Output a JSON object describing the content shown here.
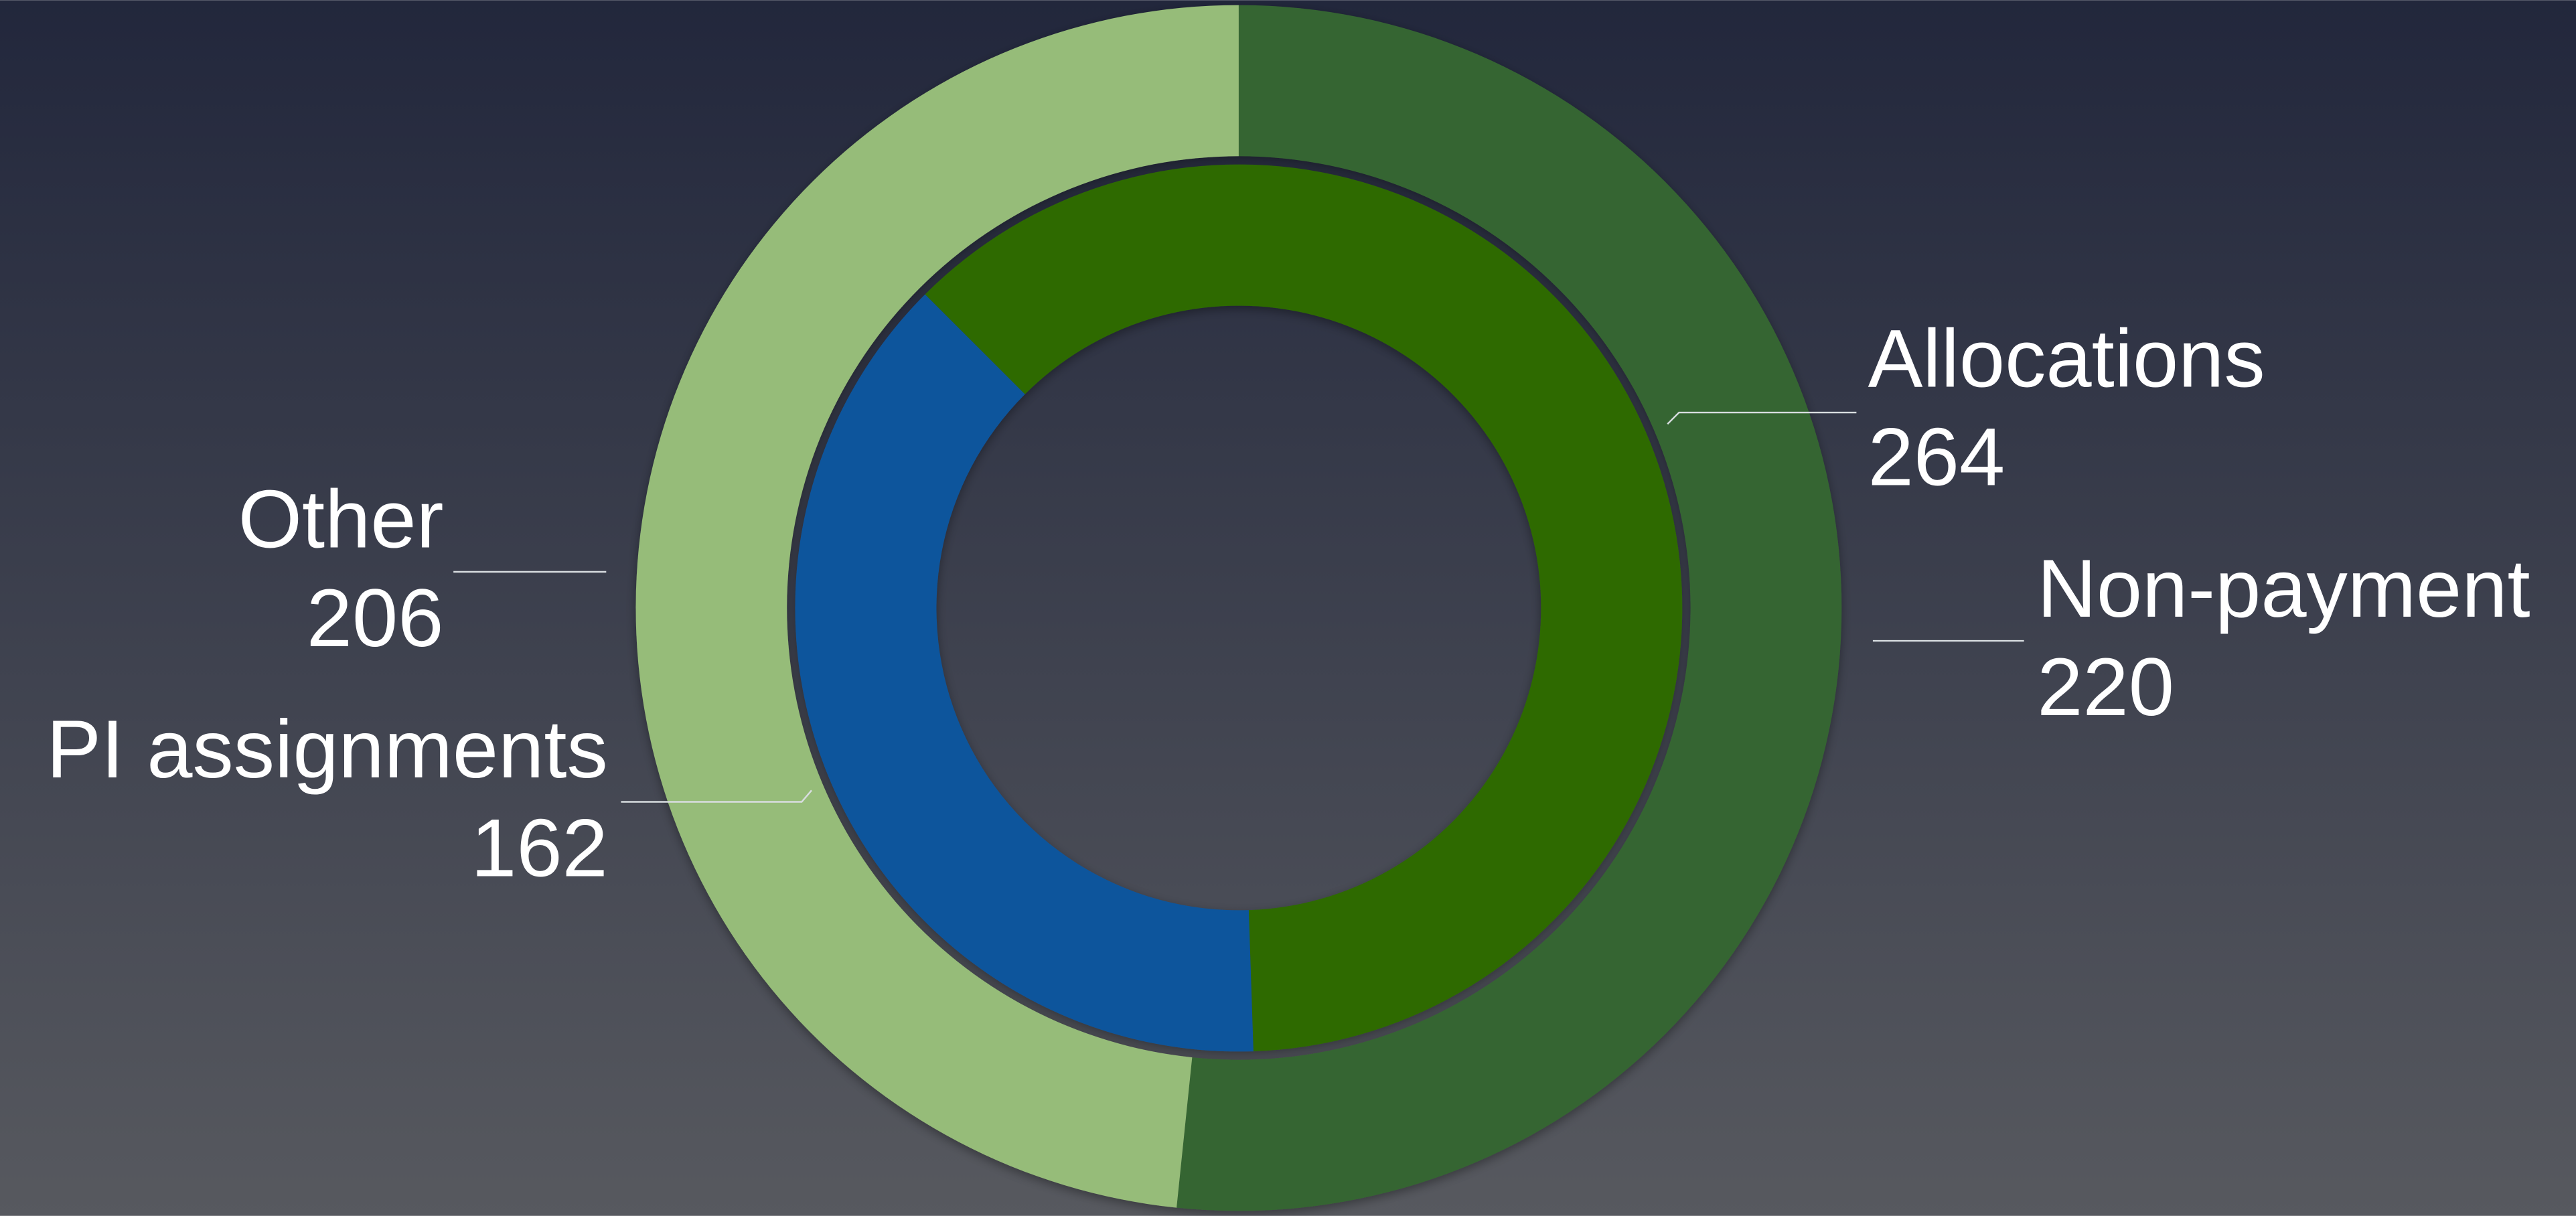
{
  "chart_data": {
    "type": "donut",
    "rings": [
      {
        "labels": [
          "Non-payment",
          "Other"
        ],
        "values": [
          220,
          206
        ],
        "colors": [
          "#356530",
          "#96bc79"
        ]
      },
      {
        "labels": [
          "Allocations",
          "PI assignments"
        ],
        "values": [
          264,
          162
        ],
        "colors": [
          "#2d6a05",
          "#0f559c"
        ]
      }
    ]
  }
}
